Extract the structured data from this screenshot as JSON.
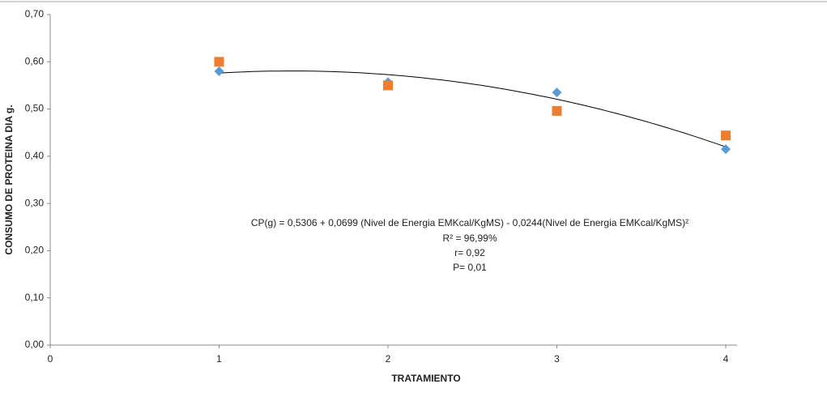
{
  "chart_data": {
    "type": "scatter",
    "x_label": "TRATAMIENTO",
    "y_label": "CONSUMO DE PROTEINA DIA g.",
    "x": [
      1,
      2,
      3,
      4
    ],
    "series": [
      {
        "marker": "diamond",
        "color": "#5b9bd5",
        "values": [
          0.58,
          0.557,
          0.535,
          0.415
        ]
      },
      {
        "marker": "square",
        "color": "#ed7d31",
        "values": [
          0.6,
          0.55,
          0.496,
          0.444
        ]
      }
    ],
    "trendline": {
      "color": "#000000",
      "coefficients": [
        0.5306,
        0.0699,
        -0.0244
      ]
    },
    "annotations": [
      "CP(g)  =  0,5306 + 0,0699 (Nivel de Energia EMKcal/KgMS)  - 0,0244(Nivel de Energia EMKcal/KgMS)²",
      "R² = 96,99%",
      "r= 0,92",
      "P= 0,01"
    ],
    "xlim": [
      0,
      4
    ],
    "xticks": [
      0,
      1,
      2,
      3,
      4
    ],
    "ylim": [
      0,
      0.7
    ],
    "yticks": [
      {
        "value": 0,
        "label": "0,00"
      },
      {
        "value": 0.1,
        "label": "0,10"
      },
      {
        "value": 0.2,
        "label": "0,20"
      },
      {
        "value": 0.3,
        "label": "0,30"
      },
      {
        "value": 0.4,
        "label": "0,40"
      },
      {
        "value": 0.5,
        "label": "0,50"
      },
      {
        "value": 0.6,
        "label": "0,60"
      },
      {
        "value": 0.7,
        "label": "0,70"
      }
    ],
    "grid": false
  }
}
